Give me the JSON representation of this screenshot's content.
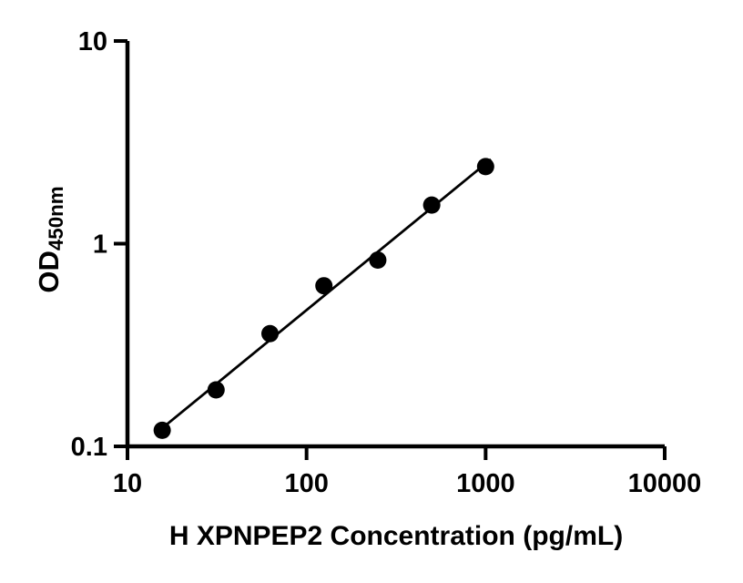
{
  "chart": {
    "xlabel": "H XPNPEP2 Concentration (pg/mL)",
    "ylabel_main": "OD",
    "ylabel_sub": "450nm"
  },
  "chart_data": {
    "type": "scatter",
    "title": "",
    "xlabel": "H XPNPEP2 Concentration (pg/mL)",
    "ylabel": "OD450nm",
    "x": [
      15.63,
      31.25,
      62.5,
      125,
      250,
      500,
      1000
    ],
    "y": [
      0.12,
      0.19,
      0.36,
      0.62,
      0.83,
      1.55,
      2.4
    ],
    "x_scale": "log",
    "y_scale": "log",
    "xlim": [
      10,
      10000
    ],
    "ylim": [
      0.1,
      10
    ],
    "x_ticks": [
      10,
      100,
      1000,
      10000
    ],
    "x_tick_labels": [
      "10",
      "100",
      "1000",
      "10000"
    ],
    "y_ticks": [
      0.1,
      1,
      10
    ],
    "y_tick_labels": [
      "0.1",
      "1",
      "10"
    ],
    "grid": false,
    "legend": null,
    "trendline": "least-squares-fit-in-loglog-space",
    "marker": {
      "shape": "circle",
      "color": "#000000",
      "radius_px": 9.5
    },
    "colors": {
      "axis": "#000000",
      "marker": "#000000",
      "line": "#000000",
      "background": "#ffffff"
    }
  }
}
